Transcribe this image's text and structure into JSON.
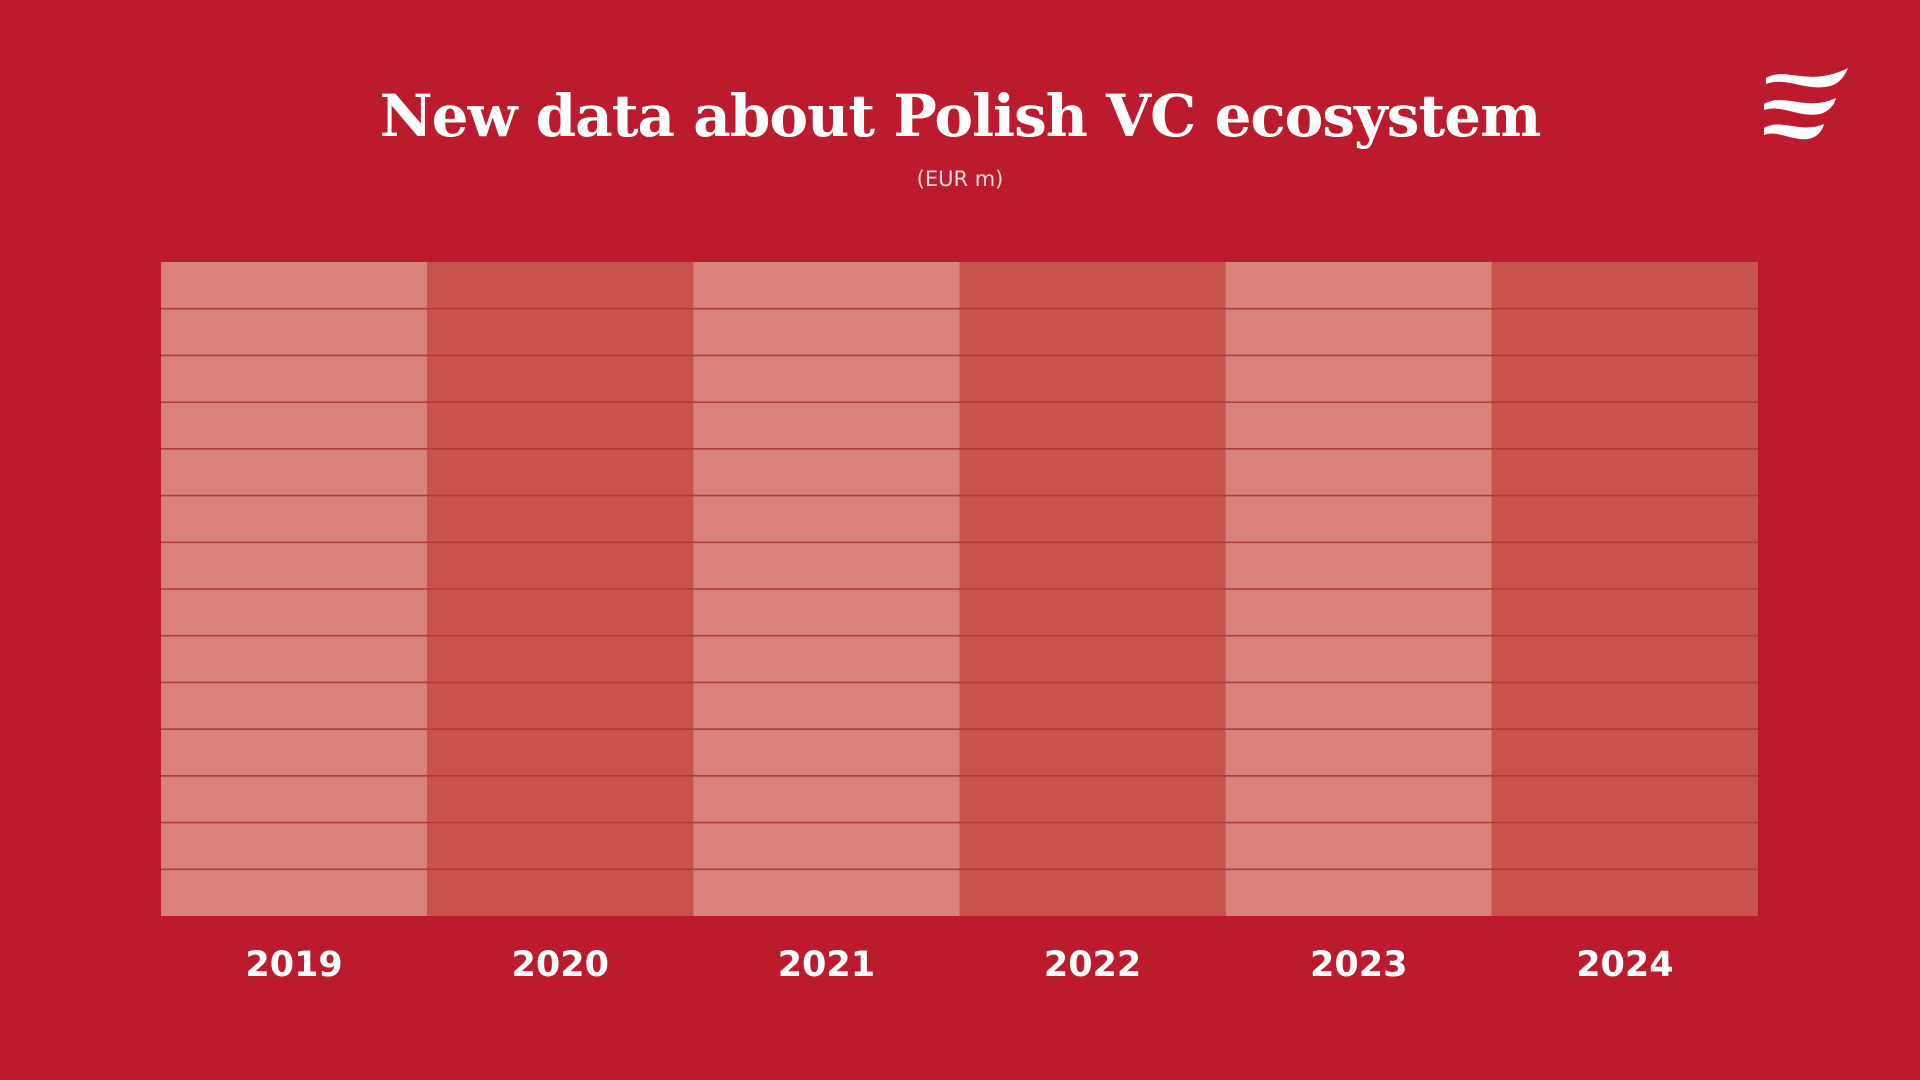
{
  "colors": {
    "background": "#bc1a2d",
    "column_light": "#d8827a",
    "column_dark": "#c8534c",
    "gridline": "#b03a3e",
    "text": "#ffffff",
    "logo": "#ffffff"
  },
  "logo": {
    "icon": "waves-logo-icon"
  },
  "chart_data": {
    "type": "table",
    "title": "New data about Polish VC ecosystem",
    "subtitle": "(EUR m)",
    "categories": [
      "2019",
      "2020",
      "2021",
      "2022",
      "2023",
      "2024"
    ],
    "row_count": 14,
    "series": [],
    "legend": "none",
    "grid": true
  }
}
